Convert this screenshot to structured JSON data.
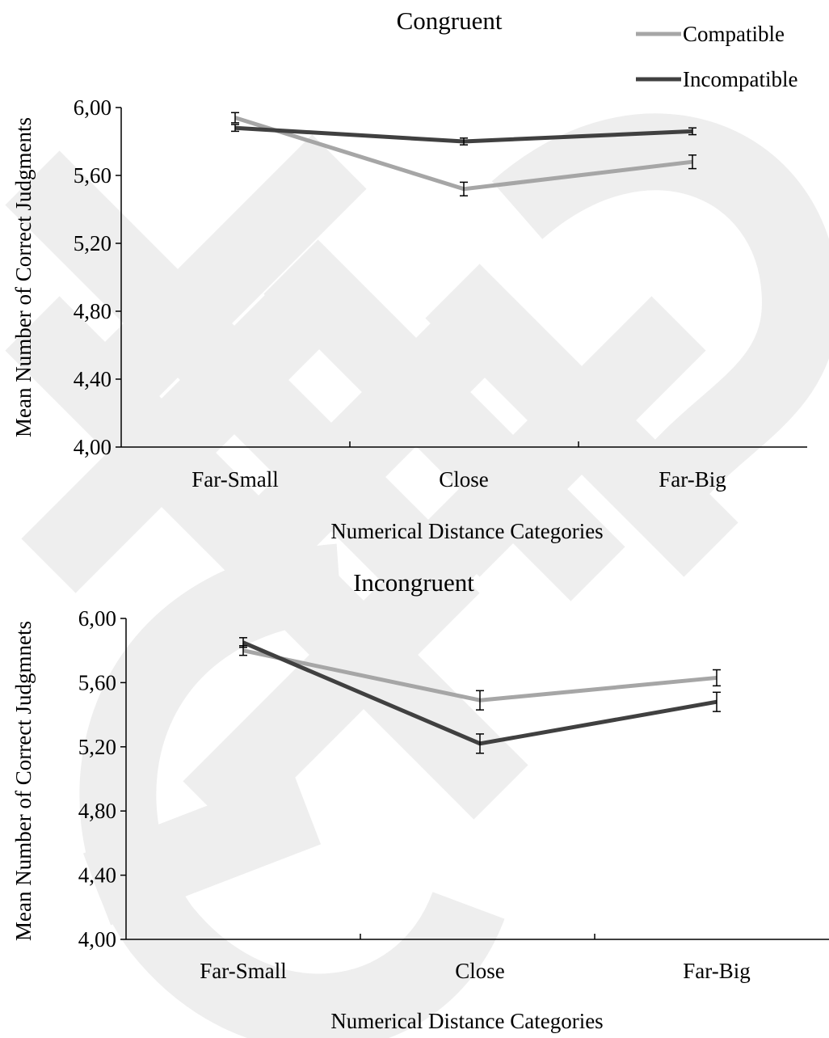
{
  "chart_data": [
    {
      "type": "line",
      "title": "Congruent",
      "xlabel": "Numerical Distance Categories",
      "ylabel": "Mean Number of Correct Judgments",
      "categories": [
        "Far-Small",
        "Close",
        "Far-Big"
      ],
      "ylim": [
        4.0,
        6.0
      ],
      "yticks": [
        "4,00",
        "4,40",
        "4,80",
        "5,20",
        "5,60",
        "6,00"
      ],
      "ytick_values": [
        4.0,
        4.4,
        4.8,
        5.2,
        5.6,
        6.0
      ],
      "grid": false,
      "legend_position": "top-right",
      "series": [
        {
          "name": "Compatible",
          "color": "#a6a6a6",
          "values": [
            5.94,
            5.52,
            5.68
          ],
          "errors": [
            0.03,
            0.04,
            0.04
          ]
        },
        {
          "name": "Incompatible",
          "color": "#404040",
          "values": [
            5.88,
            5.8,
            5.86
          ],
          "errors": [
            0.02,
            0.02,
            0.02
          ]
        }
      ]
    },
    {
      "type": "line",
      "title": "Incongruent",
      "xlabel": "Numerical Distance Categories",
      "ylabel": "Mean Number of Correct Judgmnets",
      "categories": [
        "Far-Small",
        "Close",
        "Far-Big"
      ],
      "ylim": [
        4.0,
        6.0
      ],
      "yticks": [
        "4,00",
        "4,40",
        "4,80",
        "5,20",
        "5,60",
        "6,00"
      ],
      "ytick_values": [
        4.0,
        4.4,
        4.8,
        5.2,
        5.6,
        6.0
      ],
      "grid": false,
      "legend_position": "none",
      "series": [
        {
          "name": "Compatible",
          "color": "#a6a6a6",
          "values": [
            5.8,
            5.49,
            5.63
          ],
          "errors": [
            0.03,
            0.06,
            0.05
          ]
        },
        {
          "name": "Incompatible",
          "color": "#404040",
          "values": [
            5.85,
            5.22,
            5.48
          ],
          "errors": [
            0.03,
            0.06,
            0.06
          ]
        }
      ]
    }
  ]
}
